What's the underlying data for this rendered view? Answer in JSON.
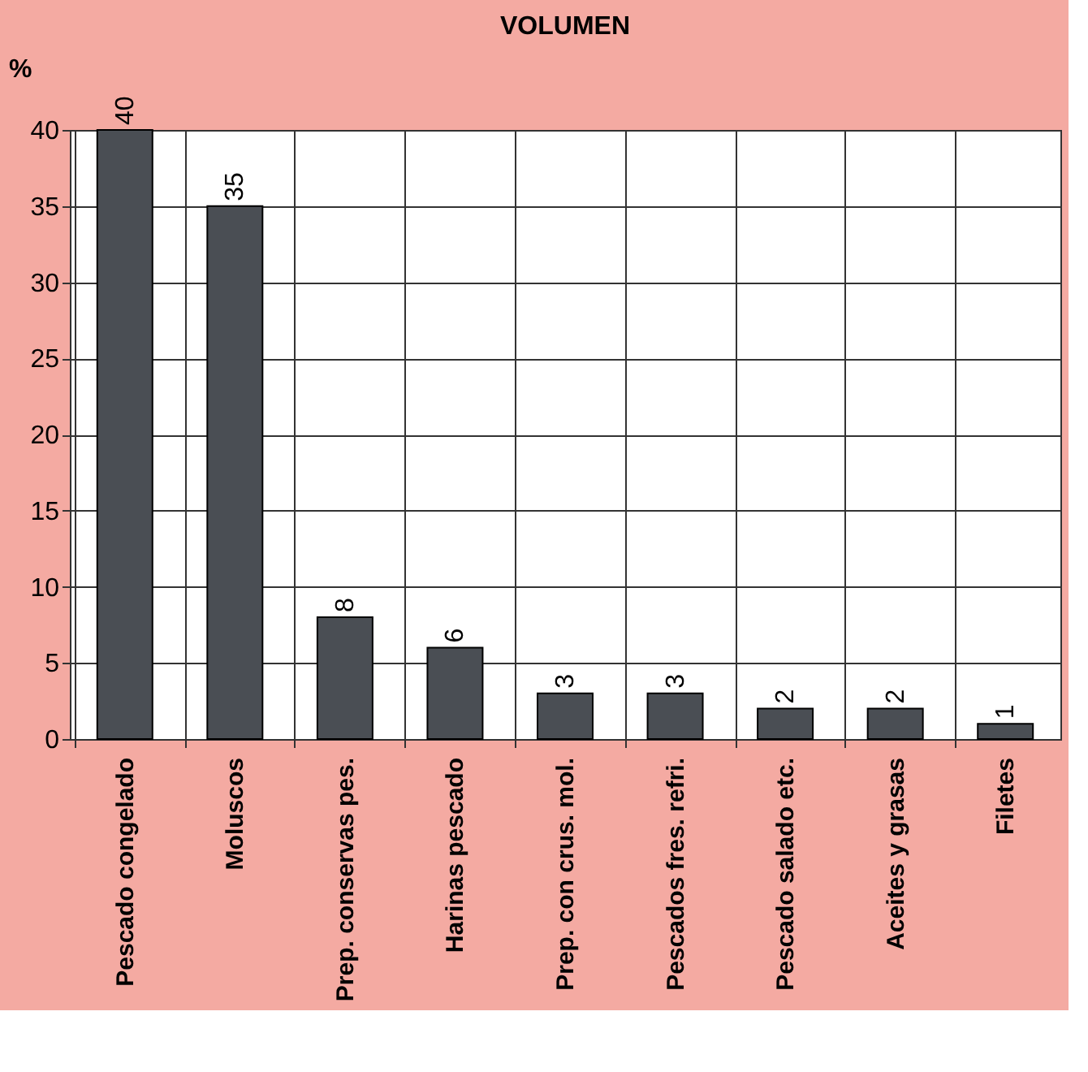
{
  "chart_data": {
    "type": "bar",
    "title": "VOLUMEN",
    "ylabel": "%",
    "categories": [
      "Pescado congelado",
      "Moluscos",
      "Prep. conservas pes.",
      "Harinas pescado",
      "Prep. con crus. mol.",
      "Pescados fres. refri.",
      "Pescado salado etc.",
      "Aceites y grasas",
      "Filetes"
    ],
    "values": [
      40,
      35,
      8,
      6,
      3,
      3,
      2,
      2,
      1
    ],
    "color": "#4a4e54",
    "ylim": [
      0,
      40
    ],
    "yticks": [
      0,
      5,
      10,
      15,
      20,
      25,
      30,
      35,
      40
    ],
    "grid": true,
    "data_labels": true
  }
}
